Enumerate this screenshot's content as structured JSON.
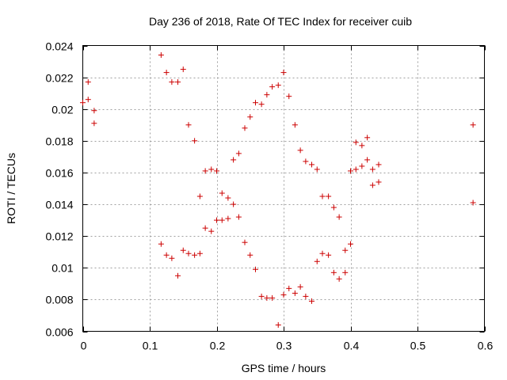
{
  "chart_data": {
    "type": "scatter",
    "title": "Day 236 of 2018, Rate Of TEC Index for receiver cuib",
    "xlabel": "GPS time / hours",
    "ylabel": "ROTI / TECUs",
    "xlim": [
      0,
      0.6
    ],
    "ylim": [
      0.006,
      0.024
    ],
    "xticks": [
      0,
      0.1,
      0.2,
      0.3,
      0.4,
      0.5,
      0.6
    ],
    "xtick_labels": [
      "0",
      "0.1",
      "0.2",
      "0.3",
      "0.4",
      "0.5",
      "0.6"
    ],
    "yticks": [
      0.006,
      0.008,
      0.01,
      0.012,
      0.014,
      0.016,
      0.018,
      0.02,
      0.022,
      0.024
    ],
    "ytick_labels": [
      "0.006",
      "0.008",
      "0.01",
      "0.012",
      "0.014",
      "0.016",
      "0.018",
      "0.02",
      "0.022",
      "0.024"
    ],
    "grid": true,
    "marker": "+",
    "marker_color": "#cc0000",
    "series": [
      {
        "name": "ROTI",
        "points": [
          [
            0.0,
            0.0204
          ],
          [
            0.008,
            0.0206
          ],
          [
            0.008,
            0.0217
          ],
          [
            0.017,
            0.0199
          ],
          [
            0.017,
            0.0191
          ],
          [
            0.117,
            0.0234
          ],
          [
            0.125,
            0.0223
          ],
          [
            0.133,
            0.0217
          ],
          [
            0.142,
            0.0217
          ],
          [
            0.15,
            0.0225
          ],
          [
            0.158,
            0.019
          ],
          [
            0.167,
            0.018
          ],
          [
            0.175,
            0.0145
          ],
          [
            0.183,
            0.0161
          ],
          [
            0.192,
            0.0162
          ],
          [
            0.2,
            0.0161
          ],
          [
            0.183,
            0.0125
          ],
          [
            0.192,
            0.0123
          ],
          [
            0.2,
            0.013
          ],
          [
            0.208,
            0.013
          ],
          [
            0.208,
            0.0147
          ],
          [
            0.217,
            0.0144
          ],
          [
            0.217,
            0.0131
          ],
          [
            0.225,
            0.014
          ],
          [
            0.225,
            0.0168
          ],
          [
            0.233,
            0.0172
          ],
          [
            0.233,
            0.0132
          ],
          [
            0.242,
            0.0188
          ],
          [
            0.242,
            0.0116
          ],
          [
            0.25,
            0.0195
          ],
          [
            0.25,
            0.0108
          ],
          [
            0.258,
            0.0204
          ],
          [
            0.258,
            0.0099
          ],
          [
            0.267,
            0.0203
          ],
          [
            0.267,
            0.0082
          ],
          [
            0.275,
            0.0209
          ],
          [
            0.275,
            0.0081
          ],
          [
            0.283,
            0.0214
          ],
          [
            0.283,
            0.0081
          ],
          [
            0.292,
            0.0215
          ],
          [
            0.292,
            0.0064
          ],
          [
            0.3,
            0.0223
          ],
          [
            0.3,
            0.0083
          ],
          [
            0.308,
            0.0208
          ],
          [
            0.308,
            0.0087
          ],
          [
            0.317,
            0.019
          ],
          [
            0.317,
            0.0084
          ],
          [
            0.325,
            0.0174
          ],
          [
            0.325,
            0.0088
          ],
          [
            0.333,
            0.0167
          ],
          [
            0.333,
            0.0082
          ],
          [
            0.342,
            0.0165
          ],
          [
            0.342,
            0.0079
          ],
          [
            0.35,
            0.0162
          ],
          [
            0.35,
            0.0104
          ],
          [
            0.358,
            0.0145
          ],
          [
            0.358,
            0.0109
          ],
          [
            0.367,
            0.0145
          ],
          [
            0.367,
            0.0108
          ],
          [
            0.375,
            0.0138
          ],
          [
            0.375,
            0.0097
          ],
          [
            0.383,
            0.0132
          ],
          [
            0.383,
            0.0093
          ],
          [
            0.392,
            0.0111
          ],
          [
            0.392,
            0.0097
          ],
          [
            0.4,
            0.0115
          ],
          [
            0.4,
            0.0161
          ],
          [
            0.408,
            0.0162
          ],
          [
            0.408,
            0.0179
          ],
          [
            0.417,
            0.0177
          ],
          [
            0.417,
            0.0164
          ],
          [
            0.425,
            0.0182
          ],
          [
            0.425,
            0.0168
          ],
          [
            0.433,
            0.0162
          ],
          [
            0.433,
            0.0152
          ],
          [
            0.442,
            0.0165
          ],
          [
            0.442,
            0.0154
          ],
          [
            0.117,
            0.0115
          ],
          [
            0.125,
            0.0108
          ],
          [
            0.133,
            0.0106
          ],
          [
            0.142,
            0.0095
          ],
          [
            0.15,
            0.0111
          ],
          [
            0.158,
            0.0109
          ],
          [
            0.167,
            0.0108
          ],
          [
            0.175,
            0.0109
          ],
          [
            0.583,
            0.019
          ],
          [
            0.583,
            0.0141
          ]
        ]
      }
    ]
  }
}
